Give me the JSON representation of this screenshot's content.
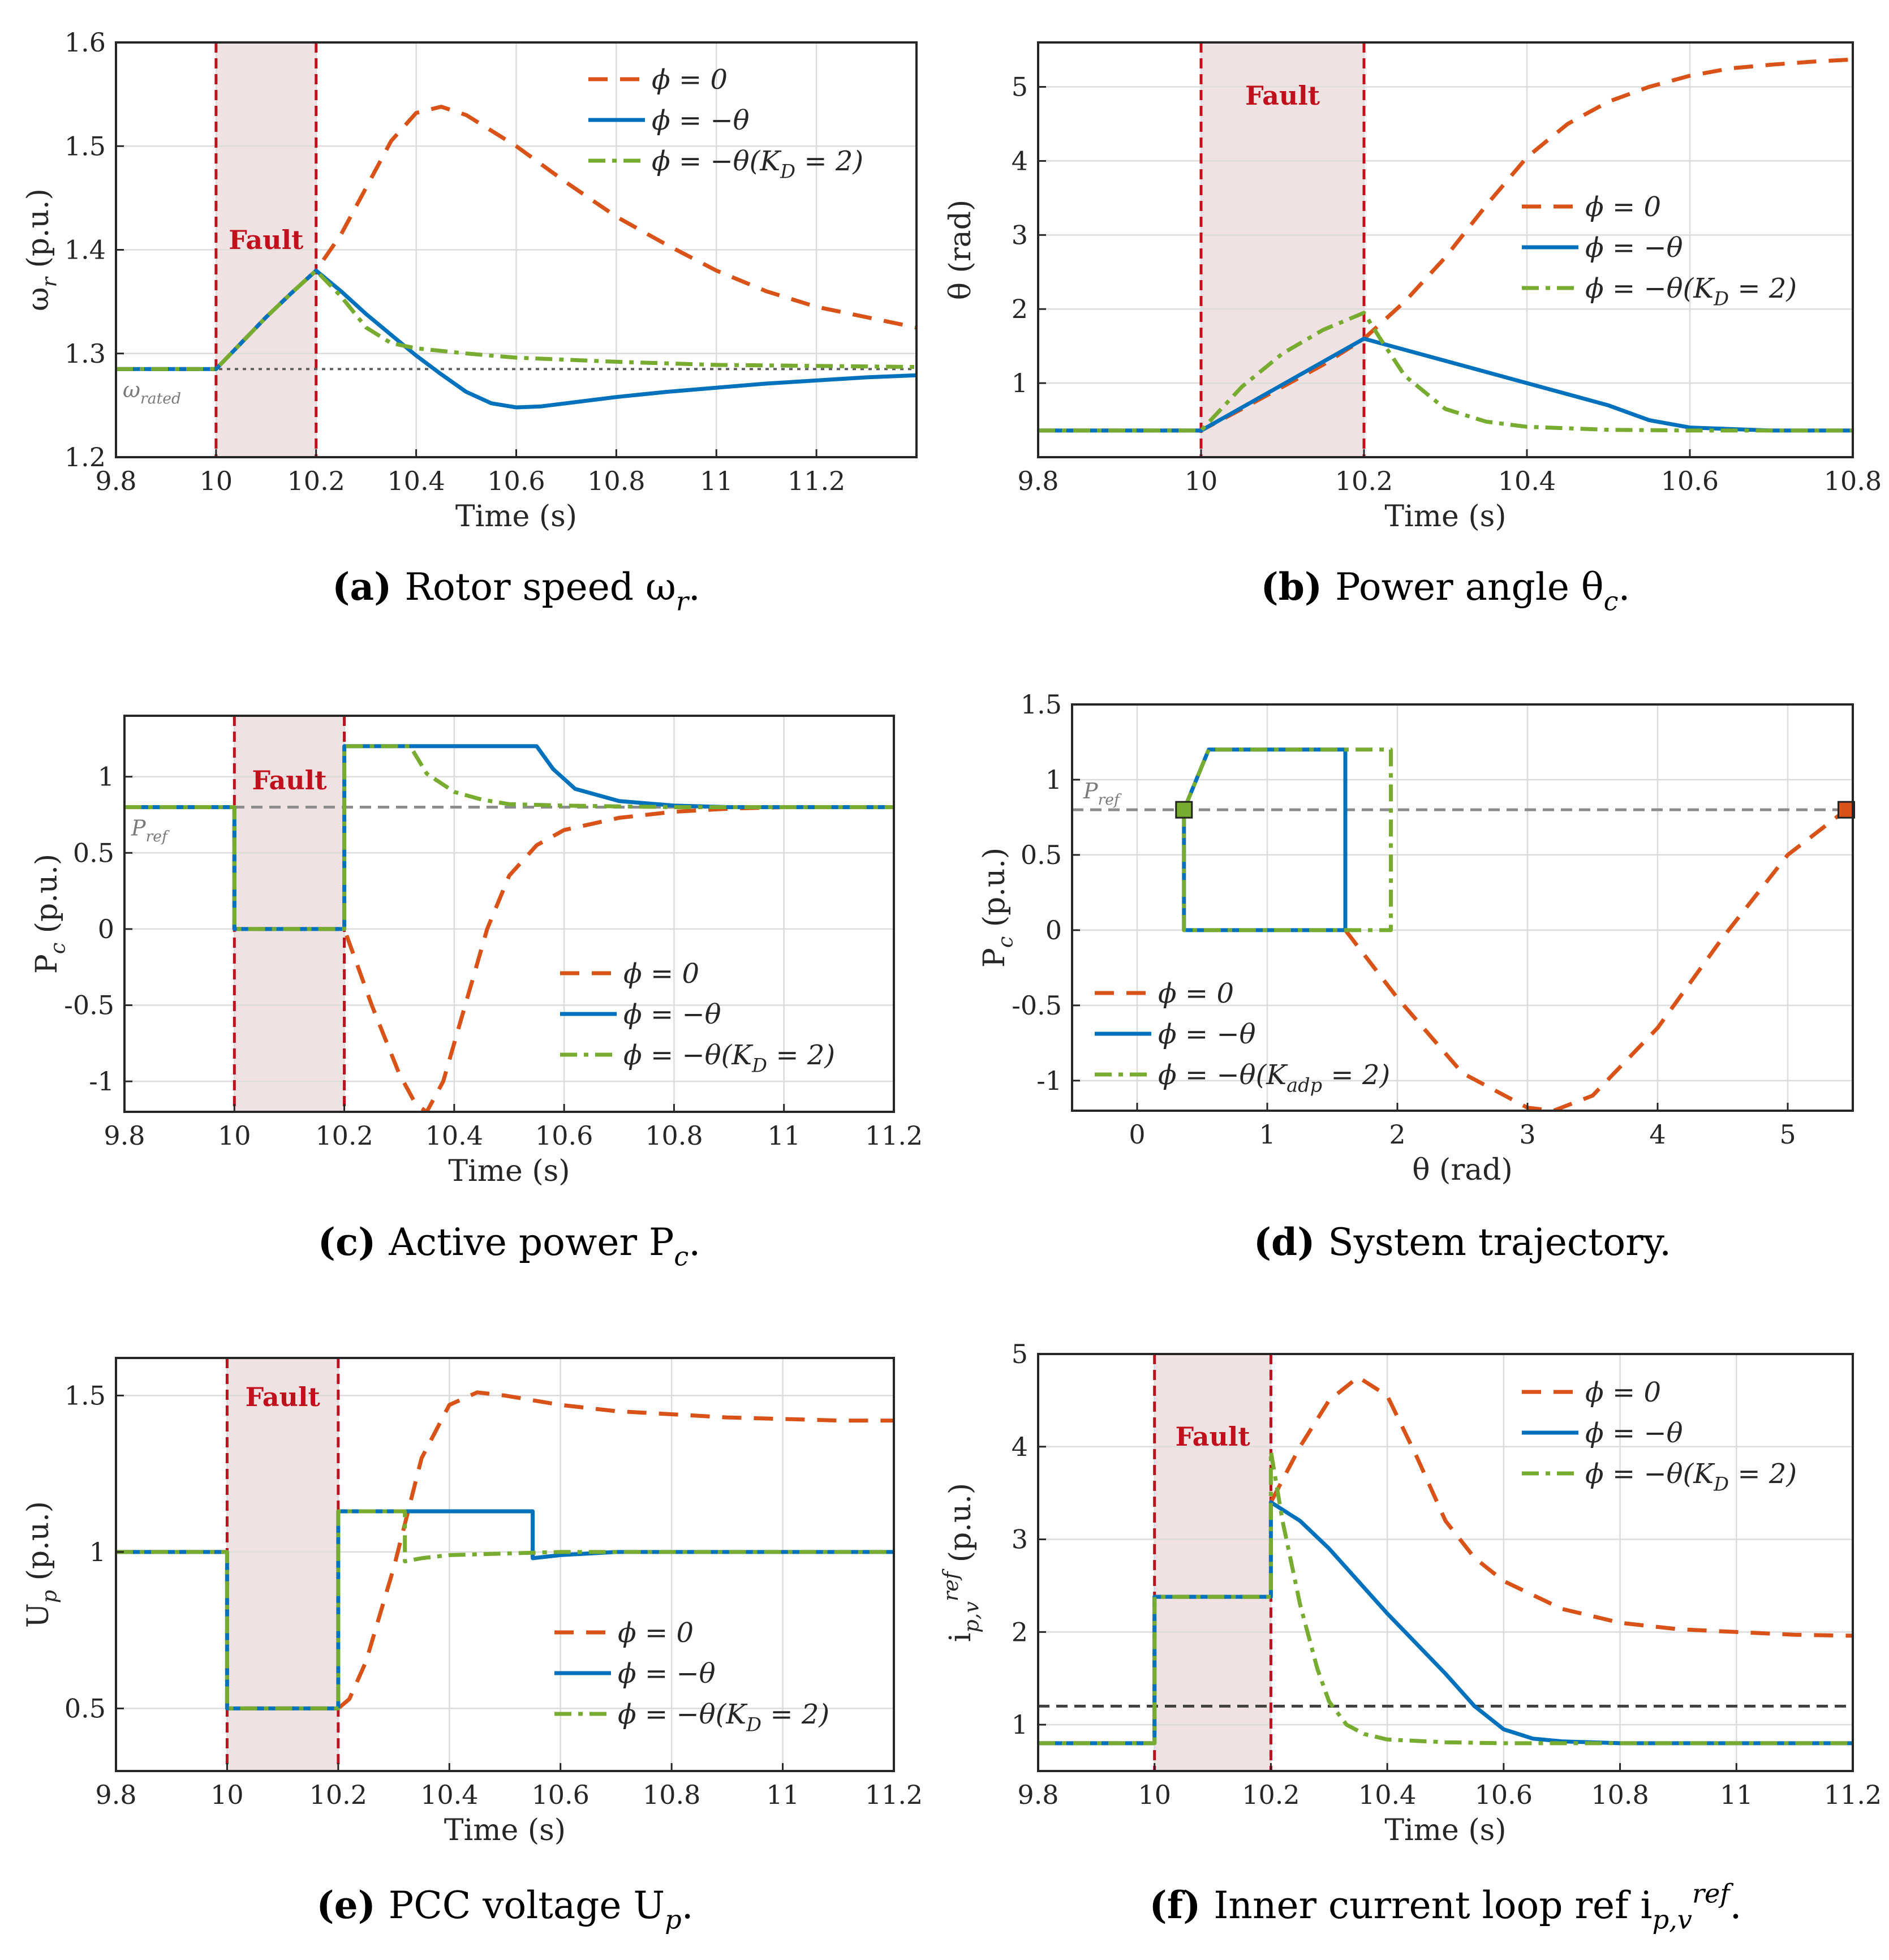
{
  "colors": {
    "phi0": "#D95319",
    "phiTheta": "#0072BD",
    "phiKD": "#77AC30",
    "fault_line": "#C0101C",
    "fault_fill": "#F0E2E2",
    "ref_gray": "#8C8C8C",
    "ref_dark": "#404040",
    "grid": "#DCDCDC"
  },
  "fault_label": "Fault",
  "legend_labels": {
    "phi0": "ϕ = 0",
    "phiTheta": "ϕ = −θ",
    "phiKD": "ϕ = −θ(K_D = 2)",
    "phiKadp": "ϕ = −θ(K_adp = 2)"
  },
  "chart_data": [
    {
      "id": "a",
      "type": "line",
      "caption": {
        "letter": "(a)",
        "text": "Rotor speed ω_r."
      },
      "xlabel": "Time (s)",
      "ylabel": "ω_r (p.u.)",
      "xlim": [
        9.8,
        11.4
      ],
      "ylim": [
        1.2,
        1.6
      ],
      "xticks": [
        "9.8",
        "10",
        "10.2",
        "10.4",
        "10.6",
        "10.8",
        "11",
        "11.2"
      ],
      "yticks": [
        "1.2",
        "1.3",
        "1.4",
        "1.5",
        "1.6"
      ],
      "fault": [
        10.0,
        10.2
      ],
      "ref_line": {
        "y": 1.285,
        "label": "ω_rated"
      },
      "series": [
        {
          "name": "ϕ = 0",
          "key": "phi0",
          "x": [
            9.8,
            10,
            10.05,
            10.1,
            10.15,
            10.2,
            10.25,
            10.3,
            10.35,
            10.4,
            10.45,
            10.5,
            10.6,
            10.7,
            10.8,
            10.9,
            11,
            11.1,
            11.2,
            11.3,
            11.4
          ],
          "y": [
            1.285,
            1.285,
            1.31,
            1.335,
            1.358,
            1.38,
            1.415,
            1.46,
            1.505,
            1.532,
            1.538,
            1.53,
            1.5,
            1.465,
            1.432,
            1.405,
            1.38,
            1.36,
            1.345,
            1.335,
            1.325
          ]
        },
        {
          "name": "ϕ = −θ",
          "key": "phiTheta",
          "x": [
            9.8,
            10,
            10.05,
            10.1,
            10.15,
            10.2,
            10.25,
            10.3,
            10.35,
            10.4,
            10.45,
            10.5,
            10.55,
            10.6,
            10.65,
            10.7,
            10.8,
            10.9,
            11,
            11.1,
            11.2,
            11.3,
            11.4
          ],
          "y": [
            1.285,
            1.285,
            1.31,
            1.335,
            1.358,
            1.38,
            1.36,
            1.338,
            1.318,
            1.298,
            1.28,
            1.263,
            1.252,
            1.248,
            1.249,
            1.252,
            1.258,
            1.263,
            1.267,
            1.271,
            1.274,
            1.277,
            1.279
          ]
        },
        {
          "name": "ϕ = −θ(K_D = 2)",
          "key": "phiKD",
          "x": [
            9.8,
            10,
            10.05,
            10.1,
            10.15,
            10.2,
            10.25,
            10.3,
            10.35,
            10.4,
            10.5,
            10.6,
            10.8,
            11,
            11.2,
            11.4
          ],
          "y": [
            1.285,
            1.285,
            1.31,
            1.335,
            1.358,
            1.38,
            1.355,
            1.325,
            1.31,
            1.305,
            1.3,
            1.296,
            1.292,
            1.289,
            1.288,
            1.287
          ]
        }
      ]
    },
    {
      "id": "b",
      "type": "line",
      "caption": {
        "letter": "(b)",
        "text": "Power angle θ_c."
      },
      "xlabel": "Time (s)",
      "ylabel": "θ (rad)",
      "xlim": [
        9.8,
        10.8
      ],
      "ylim": [
        0,
        5.6
      ],
      "xticks": [
        "9.8",
        "10",
        "10.2",
        "10.4",
        "10.6",
        "10.8"
      ],
      "yticks": [
        "1",
        "2",
        "3",
        "4",
        "5"
      ],
      "fault": [
        10.0,
        10.2
      ],
      "series": [
        {
          "name": "ϕ = 0",
          "key": "phi0",
          "x": [
            9.8,
            10,
            10.05,
            10.1,
            10.15,
            10.2,
            10.25,
            10.3,
            10.35,
            10.4,
            10.45,
            10.5,
            10.55,
            10.6,
            10.65,
            10.7,
            10.75,
            10.8
          ],
          "y": [
            0.36,
            0.36,
            0.65,
            0.95,
            1.25,
            1.6,
            2.1,
            2.7,
            3.4,
            4.05,
            4.5,
            4.8,
            5.0,
            5.15,
            5.25,
            5.3,
            5.34,
            5.37
          ]
        },
        {
          "name": "ϕ = −θ",
          "key": "phiTheta",
          "x": [
            9.8,
            10,
            10.2,
            10.3,
            10.4,
            10.5,
            10.55,
            10.6,
            10.7,
            10.8
          ],
          "y": [
            0.36,
            0.36,
            1.6,
            1.3,
            1.0,
            0.7,
            0.5,
            0.4,
            0.36,
            0.36
          ]
        },
        {
          "name": "ϕ = −θ(K_D = 2)",
          "key": "phiKD",
          "x": [
            9.8,
            10,
            10.05,
            10.1,
            10.15,
            10.2,
            10.22,
            10.25,
            10.3,
            10.35,
            10.4,
            10.5,
            10.6,
            10.8
          ],
          "y": [
            0.36,
            0.36,
            0.95,
            1.4,
            1.72,
            1.95,
            1.6,
            1.1,
            0.65,
            0.48,
            0.41,
            0.37,
            0.36,
            0.36
          ]
        }
      ]
    },
    {
      "id": "c",
      "type": "line",
      "caption": {
        "letter": "(c)",
        "text": "Active power P_c."
      },
      "xlabel": "Time (s)",
      "ylabel": "P_c (p.u.)",
      "xlim": [
        9.8,
        11.2
      ],
      "ylim": [
        -1.2,
        1.4
      ],
      "xticks": [
        "9.8",
        "10",
        "10.2",
        "10.4",
        "10.6",
        "10.8",
        "11",
        "11.2"
      ],
      "yticks": [
        "-1",
        "-0.5",
        "0",
        "0.5",
        "1"
      ],
      "fault": [
        10.0,
        10.2
      ],
      "ref_line": {
        "y": 0.8,
        "label": "P_ref"
      },
      "series": [
        {
          "name": "ϕ = 0",
          "key": "phi0",
          "x": [
            9.8,
            10,
            10,
            10.2,
            10.2,
            10.25,
            10.3,
            10.33,
            10.35,
            10.38,
            10.42,
            10.46,
            10.5,
            10.55,
            10.6,
            10.7,
            10.8,
            10.9,
            11,
            11.1,
            11.2
          ],
          "y": [
            0.8,
            0.8,
            0,
            0,
            0,
            -0.5,
            -0.95,
            -1.15,
            -1.2,
            -1.0,
            -0.5,
            0,
            0.35,
            0.55,
            0.65,
            0.73,
            0.77,
            0.79,
            0.8,
            0.8,
            0.8
          ]
        },
        {
          "name": "ϕ = −θ",
          "key": "phiTheta",
          "x": [
            9.8,
            10,
            10,
            10.2,
            10.2,
            10.55,
            10.58,
            10.62,
            10.7,
            10.8,
            10.9,
            11.2
          ],
          "y": [
            0.8,
            0.8,
            0,
            0,
            1.2,
            1.2,
            1.05,
            0.92,
            0.84,
            0.81,
            0.8,
            0.8
          ]
        },
        {
          "name": "ϕ = −θ(K_D = 2)",
          "key": "phiKD",
          "x": [
            9.8,
            10,
            10,
            10.2,
            10.2,
            10.32,
            10.35,
            10.4,
            10.45,
            10.5,
            10.6,
            10.8,
            11.2
          ],
          "y": [
            0.8,
            0.8,
            0,
            0,
            1.2,
            1.2,
            1.02,
            0.9,
            0.85,
            0.82,
            0.81,
            0.8,
            0.8
          ]
        }
      ]
    },
    {
      "id": "d",
      "type": "line",
      "caption": {
        "letter": "(d)",
        "text": "System trajectory."
      },
      "xlabel": "θ (rad)",
      "ylabel": "P_c (p.u.)",
      "xlim": [
        -0.5,
        5.5
      ],
      "ylim": [
        -1.2,
        1.5
      ],
      "xticks": [
        "0",
        "1",
        "2",
        "3",
        "4",
        "5"
      ],
      "yticks": [
        "-1",
        "-0.5",
        "0",
        "0.5",
        "1",
        "1.5"
      ],
      "ref_line": {
        "y": 0.8,
        "label": "P_ref"
      },
      "markers": [
        {
          "x": 0.36,
          "y": 0.8,
          "key": "phiKD"
        },
        {
          "x": 5.45,
          "y": 0.8,
          "key": "phi0"
        }
      ],
      "series": [
        {
          "name": "ϕ = 0",
          "key": "phi0",
          "x": [
            1.6,
            2.0,
            2.5,
            3.0,
            3.2,
            3.5,
            4.0,
            4.5,
            5.0,
            5.45
          ],
          "y": [
            0,
            -0.45,
            -0.95,
            -1.18,
            -1.2,
            -1.1,
            -0.65,
            -0.05,
            0.5,
            0.8
          ]
        },
        {
          "name": "ϕ = −θ",
          "key": "phiTheta",
          "x": [
            0.36,
            0.36,
            1.6,
            1.6,
            0.55,
            0.36
          ],
          "y": [
            0.8,
            0,
            0,
            1.2,
            1.2,
            0.8
          ]
        },
        {
          "name": "ϕ = −θ(K_adp = 2)",
          "key": "phiKD",
          "x": [
            0.36,
            0.36,
            1.95,
            1.95,
            0.55,
            0.36
          ],
          "y": [
            0.8,
            0,
            0,
            1.2,
            1.2,
            0.8
          ]
        }
      ]
    },
    {
      "id": "e",
      "type": "line",
      "caption": {
        "letter": "(e)",
        "text": "PCC voltage U_p."
      },
      "xlabel": "Time (s)",
      "ylabel": "U_p (p.u.)",
      "xlim": [
        9.8,
        11.2
      ],
      "ylim": [
        0.3,
        1.62
      ],
      "xticks": [
        "9.8",
        "10",
        "10.2",
        "10.4",
        "10.6",
        "10.8",
        "11",
        "11.2"
      ],
      "yticks": [
        "0.5",
        "1",
        "1.5"
      ],
      "fault": [
        10.0,
        10.2
      ],
      "series": [
        {
          "name": "ϕ = 0",
          "key": "phi0",
          "x": [
            9.8,
            10,
            10,
            10.2,
            10.22,
            10.25,
            10.3,
            10.35,
            10.4,
            10.45,
            10.5,
            10.6,
            10.7,
            10.8,
            10.9,
            11,
            11.1,
            11.2
          ],
          "y": [
            1.0,
            1.0,
            0.5,
            0.5,
            0.53,
            0.65,
            0.95,
            1.3,
            1.47,
            1.51,
            1.5,
            1.47,
            1.45,
            1.44,
            1.43,
            1.425,
            1.42,
            1.42
          ]
        },
        {
          "name": "ϕ = −θ",
          "key": "phiTheta",
          "x": [
            9.8,
            10,
            10,
            10.2,
            10.2,
            10.55,
            10.55,
            10.6,
            10.7,
            11.2
          ],
          "y": [
            1.0,
            1.0,
            0.5,
            0.5,
            1.13,
            1.13,
            0.98,
            0.99,
            1.0,
            1.0
          ]
        },
        {
          "name": "ϕ = −θ(K_D = 2)",
          "key": "phiKD",
          "x": [
            9.8,
            10,
            10,
            10.2,
            10.2,
            10.32,
            10.32,
            10.35,
            10.4,
            10.5,
            10.6,
            11.2
          ],
          "y": [
            1.0,
            1.0,
            0.5,
            0.5,
            1.13,
            1.13,
            0.97,
            0.98,
            0.99,
            0.995,
            1.0,
            1.0
          ]
        }
      ]
    },
    {
      "id": "f",
      "type": "line",
      "caption": {
        "letter": "(f)",
        "text": "Inner current loop ref i_p,v^ref."
      },
      "xlabel": "Time (s)",
      "ylabel": "i_p,v^ref (p.u.)",
      "xlim": [
        9.8,
        11.2
      ],
      "ylim": [
        0.5,
        5
      ],
      "xticks": [
        "9.8",
        "10",
        "10.2",
        "10.4",
        "10.6",
        "10.8",
        "11",
        "11.2"
      ],
      "yticks": [
        "1",
        "2",
        "3",
        "4",
        "5"
      ],
      "fault": [
        10.0,
        10.2
      ],
      "ref_line": {
        "y": 1.2,
        "label": ""
      },
      "series": [
        {
          "name": "ϕ = 0",
          "key": "phi0",
          "x": [
            9.8,
            10,
            10,
            10.2,
            10.2,
            10.25,
            10.3,
            10.35,
            10.4,
            10.45,
            10.5,
            10.55,
            10.6,
            10.7,
            10.8,
            10.9,
            11,
            11.1,
            11.2
          ],
          "y": [
            0.8,
            0.8,
            2.38,
            2.38,
            3.4,
            4.0,
            4.5,
            4.75,
            4.55,
            3.9,
            3.2,
            2.8,
            2.55,
            2.25,
            2.1,
            2.03,
            2.0,
            1.97,
            1.96
          ]
        },
        {
          "name": "ϕ = −θ",
          "key": "phiTheta",
          "x": [
            9.8,
            10,
            10,
            10.2,
            10.2,
            10.25,
            10.3,
            10.4,
            10.5,
            10.55,
            10.6,
            10.65,
            10.7,
            10.8,
            11.2
          ],
          "y": [
            0.8,
            0.8,
            2.38,
            2.38,
            3.4,
            3.2,
            2.9,
            2.2,
            1.55,
            1.2,
            0.95,
            0.85,
            0.82,
            0.8,
            0.8
          ]
        },
        {
          "name": "ϕ = −θ(K_D = 2)",
          "key": "phiKD",
          "x": [
            9.8,
            10,
            10,
            10.2,
            10.2,
            10.22,
            10.25,
            10.28,
            10.3,
            10.33,
            10.36,
            10.4,
            10.5,
            10.6,
            11.2
          ],
          "y": [
            0.8,
            0.8,
            2.38,
            2.38,
            3.95,
            3.2,
            2.3,
            1.6,
            1.25,
            1.0,
            0.9,
            0.84,
            0.81,
            0.8,
            0.8
          ]
        }
      ]
    }
  ]
}
